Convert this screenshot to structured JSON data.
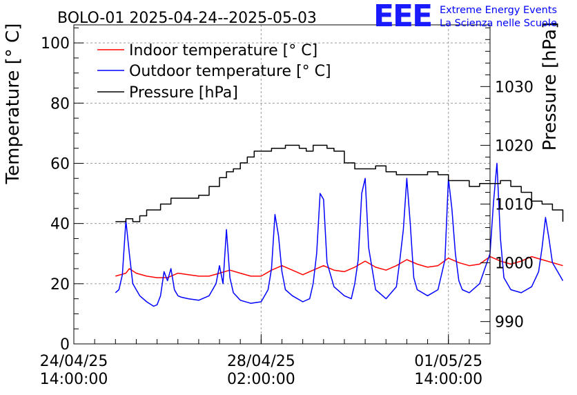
{
  "chart_data": {
    "type": "line",
    "title": "BOLO-01 2025-04-24--2025-05-03",
    "ylabel": "Temperature [° C]",
    "y2label": "Pressure [hPa]",
    "xlabel": "",
    "ylim": [
      0,
      106
    ],
    "y2lim": [
      986.2,
      1040.5
    ],
    "x_unit": "hours since 24/04/25 14:00:00",
    "xlim": [
      0,
      240
    ],
    "x_ticks": [
      {
        "x": 0,
        "date": "24/04/25",
        "time": "14:00:00"
      },
      {
        "x": 108,
        "date": "28/04/25",
        "time": "02:00:00"
      },
      {
        "x": 216,
        "date": "01/05/25",
        "time": "14:00:00"
      }
    ],
    "y_ticks": [
      0,
      20,
      40,
      60,
      80,
      100
    ],
    "y2_ticks": [
      990,
      1000,
      1010,
      1020,
      1030
    ],
    "grid": true,
    "legend_position": "top-left",
    "logo": {
      "text": "EEE",
      "line1": "Extreme Energy Events",
      "line2": "La Scienza nelle Scuole",
      "color": "#0000ff"
    },
    "series": [
      {
        "name": "Indoor temperature [° C]",
        "color": "#ff0000",
        "axis": "left",
        "x": [
          24,
          30,
          32,
          36,
          42,
          48,
          54,
          60,
          66,
          72,
          78,
          84,
          90,
          96,
          102,
          108,
          114,
          120,
          126,
          132,
          138,
          144,
          150,
          156,
          162,
          168,
          174,
          180,
          186,
          192,
          198,
          204,
          210,
          216,
          222,
          228,
          234,
          240,
          246,
          252,
          258,
          264,
          270,
          276,
          282
        ],
        "y": [
          22.5,
          23.5,
          25,
          23.5,
          22.5,
          22,
          22,
          23.5,
          23,
          22.5,
          22.5,
          23.5,
          24.5,
          23.5,
          22.5,
          22.5,
          24.5,
          26,
          24.5,
          23,
          24.5,
          26,
          24.5,
          24,
          25.5,
          27.5,
          25.5,
          24.5,
          26,
          28,
          26.5,
          25.5,
          26,
          28.5,
          27,
          26,
          26.5,
          29,
          27.5,
          26.5,
          27.5,
          29,
          28,
          27,
          26
        ]
      },
      {
        "name": "Outdoor temperature [° C]",
        "color": "#0000ff",
        "axis": "left",
        "x": [
          24,
          26,
          28,
          30,
          32,
          34,
          36,
          38,
          42,
          46,
          48,
          50,
          52,
          54,
          56,
          58,
          60,
          62,
          66,
          72,
          78,
          82,
          84,
          86,
          88,
          90,
          92,
          96,
          102,
          108,
          112,
          114,
          116,
          118,
          120,
          122,
          126,
          132,
          136,
          138,
          140,
          142,
          144,
          146,
          150,
          156,
          160,
          162,
          164,
          166,
          168,
          170,
          174,
          180,
          186,
          188,
          190,
          192,
          194,
          196,
          198,
          204,
          210,
          214,
          216,
          218,
          220,
          222,
          224,
          228,
          234,
          240,
          242,
          244,
          246,
          248,
          252,
          258,
          264,
          268,
          270,
          272,
          274,
          276,
          280,
          282
        ],
        "y": [
          17,
          18,
          23,
          41,
          30,
          20,
          18,
          16,
          14,
          12.5,
          13,
          16,
          24,
          21,
          25,
          18,
          16,
          15.5,
          15,
          14.5,
          16,
          20,
          26,
          20,
          38,
          22,
          17,
          14.5,
          13.5,
          14,
          18,
          25,
          43,
          36,
          24,
          18,
          16,
          14,
          15,
          20,
          30,
          50,
          48,
          27,
          19,
          16,
          15,
          20,
          28,
          50,
          55,
          32,
          18,
          15,
          19,
          28,
          38,
          55,
          40,
          22,
          18,
          16,
          18,
          28,
          55,
          45,
          30,
          21,
          18,
          17,
          20,
          30,
          47,
          60,
          35,
          22,
          18,
          17,
          19,
          24,
          32,
          42,
          35,
          27,
          23,
          21
        ]
      },
      {
        "name": "Pressure [hPa]",
        "color": "#000000",
        "axis": "right",
        "x": [
          24,
          30,
          34,
          38,
          42,
          50,
          56,
          66,
          72,
          78,
          84,
          88,
          92,
          96,
          100,
          104,
          110,
          114,
          118,
          122,
          126,
          130,
          134,
          138,
          142,
          146,
          150,
          156,
          162,
          168,
          174,
          180,
          186,
          192,
          198,
          204,
          210,
          216,
          222,
          228,
          234,
          240,
          246,
          252,
          258,
          264,
          270,
          276,
          282
        ],
        "y": [
          1007,
          1007.5,
          1007,
          1008,
          1009,
          1010,
          1011,
          1011,
          1011.5,
          1013,
          1014.5,
          1015.5,
          1016,
          1017,
          1018,
          1019,
          1019,
          1019.5,
          1019.5,
          1020,
          1020,
          1019.5,
          1019,
          1020,
          1020,
          1019.5,
          1019,
          1017,
          1016,
          1016,
          1016.5,
          1015.5,
          1015,
          1015,
          1015,
          1015.5,
          1015,
          1014,
          1014,
          1013,
          1013.5,
          1013.5,
          1014,
          1013,
          1012,
          1010.5,
          1010,
          1009,
          1007
        ]
      }
    ]
  }
}
